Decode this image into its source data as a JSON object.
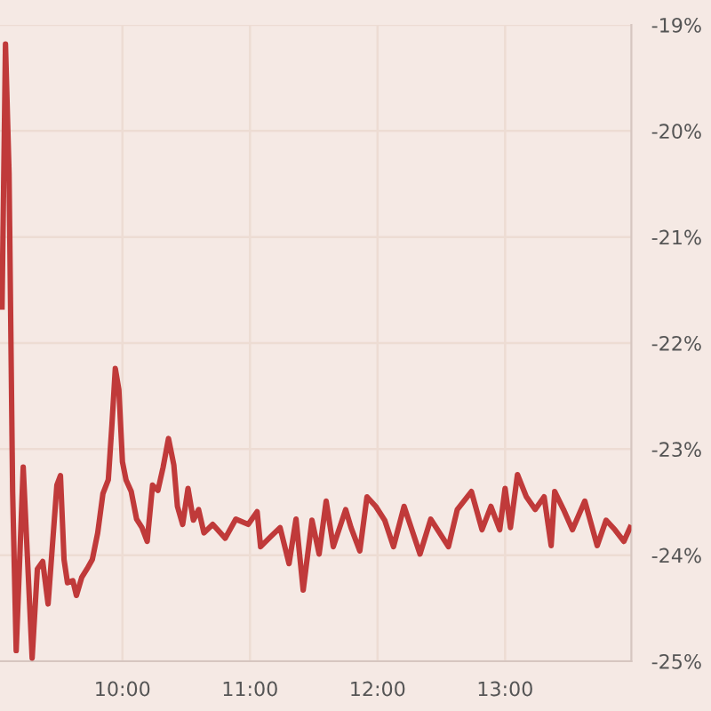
{
  "chart_data": {
    "type": "line",
    "x": [
      9.056,
      9.083,
      9.111,
      9.139,
      9.167,
      9.222,
      9.292,
      9.333,
      9.375,
      9.417,
      9.486,
      9.514,
      9.542,
      9.569,
      9.611,
      9.639,
      9.681,
      9.722,
      9.764,
      9.806,
      9.847,
      9.889,
      9.917,
      9.944,
      9.972,
      10.0,
      10.028,
      10.069,
      10.111,
      10.153,
      10.194,
      10.236,
      10.278,
      10.319,
      10.361,
      10.403,
      10.431,
      10.472,
      10.514,
      10.556,
      10.597,
      10.639,
      10.708,
      10.806,
      10.889,
      10.986,
      11.056,
      11.083,
      11.167,
      11.236,
      11.306,
      11.361,
      11.417,
      11.486,
      11.542,
      11.597,
      11.653,
      11.75,
      11.792,
      11.861,
      11.917,
      11.986,
      12.056,
      12.125,
      12.208,
      12.333,
      12.417,
      12.556,
      12.625,
      12.736,
      12.819,
      12.889,
      12.958,
      13.0,
      13.042,
      13.097,
      13.167,
      13.236,
      13.306,
      13.361,
      13.389,
      13.458,
      13.528,
      13.625,
      13.722,
      13.792,
      13.861,
      13.931,
      13.98
    ],
    "series": [
      {
        "color": "#c03a3a",
        "values": [
          -21.66,
          -19.18,
          -20.4,
          -23.4,
          -24.9,
          -23.17,
          -24.97,
          -24.13,
          -24.06,
          -24.46,
          -23.34,
          -23.25,
          -24.04,
          -24.26,
          -24.24,
          -24.38,
          -24.21,
          -24.13,
          -24.04,
          -23.79,
          -23.42,
          -23.29,
          -22.78,
          -22.24,
          -22.44,
          -23.12,
          -23.29,
          -23.4,
          -23.66,
          -23.74,
          -23.87,
          -23.34,
          -23.39,
          -23.17,
          -22.9,
          -23.15,
          -23.54,
          -23.71,
          -23.37,
          -23.67,
          -23.57,
          -23.79,
          -23.71,
          -23.84,
          -23.66,
          -23.71,
          -23.59,
          -23.92,
          -23.82,
          -23.74,
          -24.08,
          -23.66,
          -24.33,
          -23.67,
          -23.99,
          -23.49,
          -23.92,
          -23.57,
          -23.74,
          -23.96,
          -23.45,
          -23.54,
          -23.67,
          -23.92,
          -23.54,
          -23.99,
          -23.66,
          -23.92,
          -23.57,
          -23.4,
          -23.76,
          -23.54,
          -23.76,
          -23.37,
          -23.74,
          -23.24,
          -23.45,
          -23.57,
          -23.45,
          -23.91,
          -23.4,
          -23.57,
          -23.76,
          -23.49,
          -23.91,
          -23.67,
          -23.76,
          -23.87,
          -23.74
        ]
      }
    ],
    "xlim": [
      9.04,
      13.99
    ],
    "xticks": [
      {
        "value": 10,
        "label": "10:00"
      },
      {
        "value": 11,
        "label": "11:00"
      },
      {
        "value": 12,
        "label": "12:00"
      },
      {
        "value": 13,
        "label": "13:00"
      }
    ],
    "ylim": [
      -25,
      -19
    ],
    "yticks": [
      {
        "value": -25,
        "label": "-25%"
      },
      {
        "value": -24,
        "label": "-24%"
      },
      {
        "value": -23,
        "label": "-23%"
      },
      {
        "value": -22,
        "label": "-22%"
      },
      {
        "value": -21,
        "label": "-21%"
      },
      {
        "value": -20,
        "label": "-20%"
      },
      {
        "value": -19,
        "label": "-19%"
      }
    ],
    "grid": true,
    "legend": false,
    "marker": "none",
    "line_style": "solid"
  }
}
